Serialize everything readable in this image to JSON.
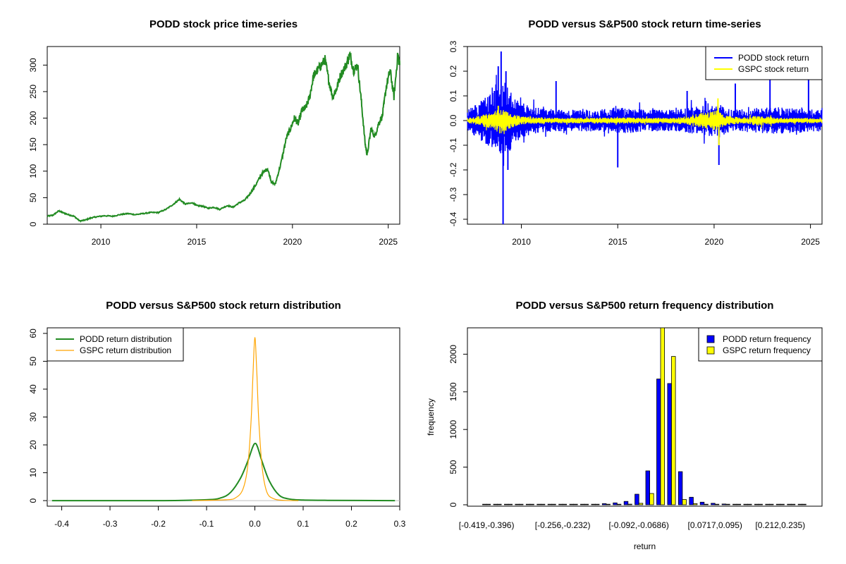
{
  "chart_data": [
    {
      "id": "price",
      "type": "line",
      "title": "PODD stock price time-series",
      "xlabel": "",
      "ylabel": "",
      "xlim": [
        2007.2,
        2025.6
      ],
      "ylim": [
        0,
        335
      ],
      "x_ticks": [
        2010,
        2015,
        2020,
        2025
      ],
      "y_ticks": [
        0,
        50,
        100,
        150,
        200,
        250,
        300
      ],
      "series": [
        {
          "color": "#228b22",
          "points": [
            [
              2007.2,
              15
            ],
            [
              2007.5,
              17
            ],
            [
              2007.8,
              25
            ],
            [
              2008.0,
              22
            ],
            [
              2008.3,
              18
            ],
            [
              2008.6,
              15
            ],
            [
              2008.9,
              6
            ],
            [
              2009.2,
              8
            ],
            [
              2009.5,
              12
            ],
            [
              2009.8,
              14
            ],
            [
              2010.2,
              16
            ],
            [
              2010.6,
              15
            ],
            [
              2011.0,
              18
            ],
            [
              2011.4,
              20
            ],
            [
              2011.8,
              18
            ],
            [
              2012.2,
              20
            ],
            [
              2012.6,
              22
            ],
            [
              2013.0,
              22
            ],
            [
              2013.4,
              28
            ],
            [
              2013.8,
              38
            ],
            [
              2014.1,
              47
            ],
            [
              2014.4,
              38
            ],
            [
              2014.8,
              40
            ],
            [
              2015.0,
              35
            ],
            [
              2015.3,
              34
            ],
            [
              2015.6,
              30
            ],
            [
              2015.9,
              32
            ],
            [
              2016.2,
              28
            ],
            [
              2016.6,
              35
            ],
            [
              2016.9,
              32
            ],
            [
              2017.2,
              40
            ],
            [
              2017.5,
              45
            ],
            [
              2017.8,
              58
            ],
            [
              2018.1,
              75
            ],
            [
              2018.4,
              95
            ],
            [
              2018.7,
              105
            ],
            [
              2018.9,
              80
            ],
            [
              2019.1,
              75
            ],
            [
              2019.4,
              115
            ],
            [
              2019.7,
              165
            ],
            [
              2019.9,
              180
            ],
            [
              2020.1,
              200
            ],
            [
              2020.3,
              190
            ],
            [
              2020.5,
              215
            ],
            [
              2020.7,
              220
            ],
            [
              2020.9,
              240
            ],
            [
              2021.1,
              280
            ],
            [
              2021.3,
              290
            ],
            [
              2021.5,
              300
            ],
            [
              2021.7,
              310
            ],
            [
              2021.9,
              270
            ],
            [
              2022.1,
              240
            ],
            [
              2022.3,
              255
            ],
            [
              2022.5,
              280
            ],
            [
              2022.8,
              300
            ],
            [
              2023.0,
              320
            ],
            [
              2023.2,
              290
            ],
            [
              2023.4,
              300
            ],
            [
              2023.6,
              230
            ],
            [
              2023.8,
              150
            ],
            [
              2023.9,
              130
            ],
            [
              2024.1,
              180
            ],
            [
              2024.3,
              165
            ],
            [
              2024.5,
              190
            ],
            [
              2024.7,
              205
            ],
            [
              2024.9,
              260
            ],
            [
              2025.1,
              290
            ],
            [
              2025.3,
              240
            ],
            [
              2025.5,
              320
            ],
            [
              2025.6,
              300
            ]
          ]
        }
      ]
    },
    {
      "id": "returns",
      "type": "line",
      "title": "PODD versus S&P500 stock return time-series",
      "xlabel": "",
      "ylabel": "",
      "xlim": [
        2007.2,
        2025.6
      ],
      "ylim": [
        -0.42,
        0.3
      ],
      "x_ticks": [
        2010,
        2015,
        2020,
        2025
      ],
      "y_ticks": [
        -0.4,
        -0.3,
        -0.2,
        -0.1,
        0.0,
        0.1,
        0.2,
        0.3
      ],
      "legend_position": "top-right",
      "series": [
        {
          "name": "PODD stock return",
          "color": "#0000ff",
          "band": [
            [
              2007.2,
              0.04
            ],
            [
              2008.0,
              0.08
            ],
            [
              2008.8,
              0.12
            ],
            [
              2009.2,
              0.15
            ],
            [
              2009.6,
              0.08
            ],
            [
              2010.5,
              0.05
            ],
            [
              2012.0,
              0.04
            ],
            [
              2014.0,
              0.04
            ],
            [
              2015.0,
              0.05
            ],
            [
              2016.5,
              0.04
            ],
            [
              2018.0,
              0.04
            ],
            [
              2020.0,
              0.06
            ],
            [
              2021.0,
              0.04
            ],
            [
              2023.0,
              0.05
            ],
            [
              2025.6,
              0.04
            ]
          ],
          "spikes": [
            [
              2008.6,
              0.12
            ],
            [
              2008.8,
              0.22
            ],
            [
              2008.95,
              0.28
            ],
            [
              2009.05,
              -0.42
            ],
            [
              2009.2,
              0.2
            ],
            [
              2009.3,
              -0.2
            ],
            [
              2011.8,
              0.16
            ],
            [
              2015.0,
              -0.19
            ],
            [
              2020.25,
              -0.18
            ],
            [
              2018.6,
              0.12
            ],
            [
              2021.1,
              0.15
            ],
            [
              2022.9,
              0.19
            ],
            [
              2024.9,
              0.2
            ]
          ]
        },
        {
          "name": "GSPC stock return",
          "color": "#ffff00",
          "band": [
            [
              2007.2,
              0.01
            ],
            [
              2008.5,
              0.03
            ],
            [
              2008.9,
              0.05
            ],
            [
              2009.4,
              0.03
            ],
            [
              2010.0,
              0.015
            ],
            [
              2012.0,
              0.01
            ],
            [
              2015.5,
              0.012
            ],
            [
              2018.0,
              0.01
            ],
            [
              2020.2,
              0.04
            ],
            [
              2020.5,
              0.02
            ],
            [
              2021.5,
              0.01
            ],
            [
              2022.3,
              0.02
            ],
            [
              2023.5,
              0.01
            ],
            [
              2025.6,
              0.01
            ]
          ],
          "spikes": [
            [
              2008.8,
              0.06
            ],
            [
              2020.2,
              0.09
            ],
            [
              2020.25,
              -0.1
            ]
          ]
        }
      ]
    },
    {
      "id": "density",
      "type": "line",
      "title": "PODD versus S&P500 stock return distribution",
      "xlabel": "",
      "ylabel": "",
      "xlim": [
        -0.43,
        0.3
      ],
      "ylim": [
        -2,
        62
      ],
      "x_ticks": [
        -0.4,
        -0.3,
        -0.2,
        -0.1,
        0.0,
        0.1,
        0.2,
        0.3
      ],
      "y_ticks": [
        0,
        10,
        20,
        30,
        40,
        50,
        60
      ],
      "legend_position": "top-left",
      "series": [
        {
          "name": "PODD return distribution",
          "color": "#228b22",
          "points": [
            [
              -0.42,
              0
            ],
            [
              -0.2,
              0
            ],
            [
              -0.1,
              0.3
            ],
            [
              -0.07,
              1
            ],
            [
              -0.05,
              3
            ],
            [
              -0.03,
              8
            ],
            [
              -0.015,
              14
            ],
            [
              -0.005,
              19
            ],
            [
              0.0,
              20.5
            ],
            [
              0.005,
              19.5
            ],
            [
              0.015,
              14
            ],
            [
              0.03,
              7
            ],
            [
              0.05,
              2
            ],
            [
              0.07,
              0.6
            ],
            [
              0.1,
              0.2
            ],
            [
              0.15,
              0.1
            ],
            [
              0.29,
              0
            ]
          ]
        },
        {
          "name": "GSPC return distribution",
          "color": "#ffa500",
          "points": [
            [
              -0.13,
              0
            ],
            [
              -0.06,
              0.3
            ],
            [
              -0.04,
              1
            ],
            [
              -0.025,
              4
            ],
            [
              -0.015,
              12
            ],
            [
              -0.008,
              28
            ],
            [
              -0.004,
              45
            ],
            [
              0.0,
              58.5
            ],
            [
              0.004,
              46
            ],
            [
              0.008,
              29
            ],
            [
              0.015,
              12
            ],
            [
              0.025,
              3
            ],
            [
              0.04,
              0.6
            ],
            [
              0.06,
              0.1
            ],
            [
              0.09,
              0
            ]
          ]
        }
      ]
    },
    {
      "id": "histogram",
      "type": "bar",
      "title": "PODD versus S&P500 return frequency distribution",
      "xlabel": "return",
      "ylabel": "frequency",
      "ylim": [
        0,
        2350
      ],
      "y_ticks": [
        0,
        500,
        1000,
        1500,
        2000
      ],
      "legend_position": "top-right",
      "tick_labels": [
        "[-0.419,-0.396)",
        "[-0.256,-0.232)",
        "[-0.092,-0.0686)",
        "[0.0717,0.095)",
        "[0.212,0.235)"
      ],
      "tick_label_bins": [
        0,
        7,
        14,
        21,
        27
      ],
      "bin_count": 30,
      "series": [
        {
          "name": "PODD return frequency",
          "color": "#0000ff",
          "values": [
            1,
            1,
            0,
            0,
            0,
            0,
            1,
            1,
            2,
            2,
            5,
            15,
            25,
            45,
            140,
            450,
            1670,
            1610,
            440,
            100,
            35,
            20,
            10,
            6,
            3,
            2,
            1,
            1,
            0,
            1
          ]
        },
        {
          "name": "GSPC return frequency",
          "color": "#ffff00",
          "values": [
            0,
            0,
            0,
            0,
            0,
            0,
            0,
            0,
            0,
            0,
            0,
            1,
            3,
            8,
            20,
            150,
            2350,
            1970,
            70,
            15,
            3,
            1,
            0,
            0,
            0,
            0,
            0,
            0,
            0,
            0
          ]
        }
      ]
    }
  ]
}
